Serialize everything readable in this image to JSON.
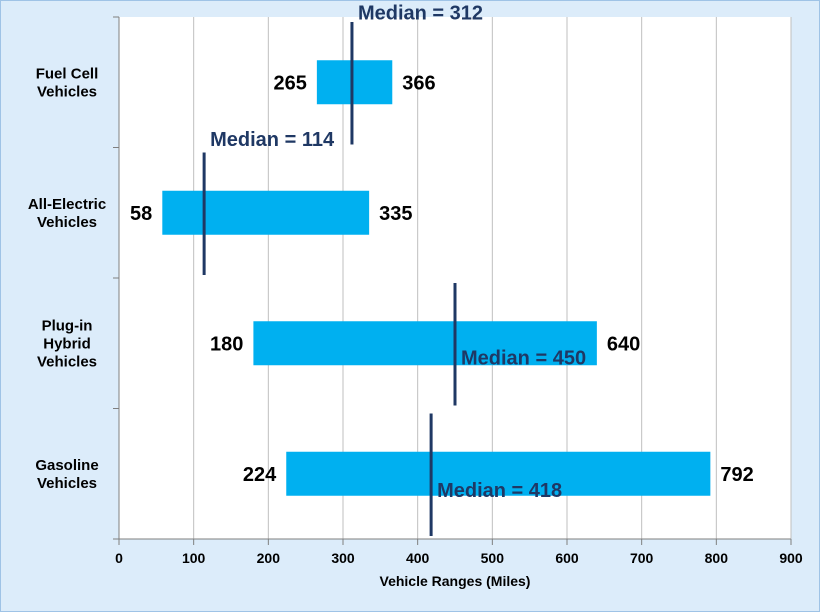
{
  "chart_data": {
    "type": "bar",
    "orientation": "horizontal-range",
    "xlabel": "Vehicle Ranges (Miles)",
    "xlim": [
      0,
      900
    ],
    "xticks": [
      0,
      100,
      200,
      300,
      400,
      500,
      600,
      700,
      800,
      900
    ],
    "grid": "vertical",
    "median_prefix": "Median = ",
    "categories": [
      {
        "label_lines": [
          "Fuel Cell",
          "Vehicles"
        ],
        "min": 265,
        "max": 366,
        "median": 312
      },
      {
        "label_lines": [
          "All-Electric",
          "Vehicles"
        ],
        "min": 58,
        "max": 335,
        "median": 114
      },
      {
        "label_lines": [
          "Plug-in",
          "Hybrid",
          "Vehicles"
        ],
        "min": 180,
        "max": 640,
        "median": 450
      },
      {
        "label_lines": [
          "Gasoline",
          "Vehicles"
        ],
        "min": 224,
        "max": 792,
        "median": 418
      }
    ],
    "colors": {
      "bar": "#00b0f0",
      "median": "#1f3864",
      "grid": "#bfbfbf",
      "axis": "#7f7f7f",
      "frame": "#dcecfa"
    }
  }
}
